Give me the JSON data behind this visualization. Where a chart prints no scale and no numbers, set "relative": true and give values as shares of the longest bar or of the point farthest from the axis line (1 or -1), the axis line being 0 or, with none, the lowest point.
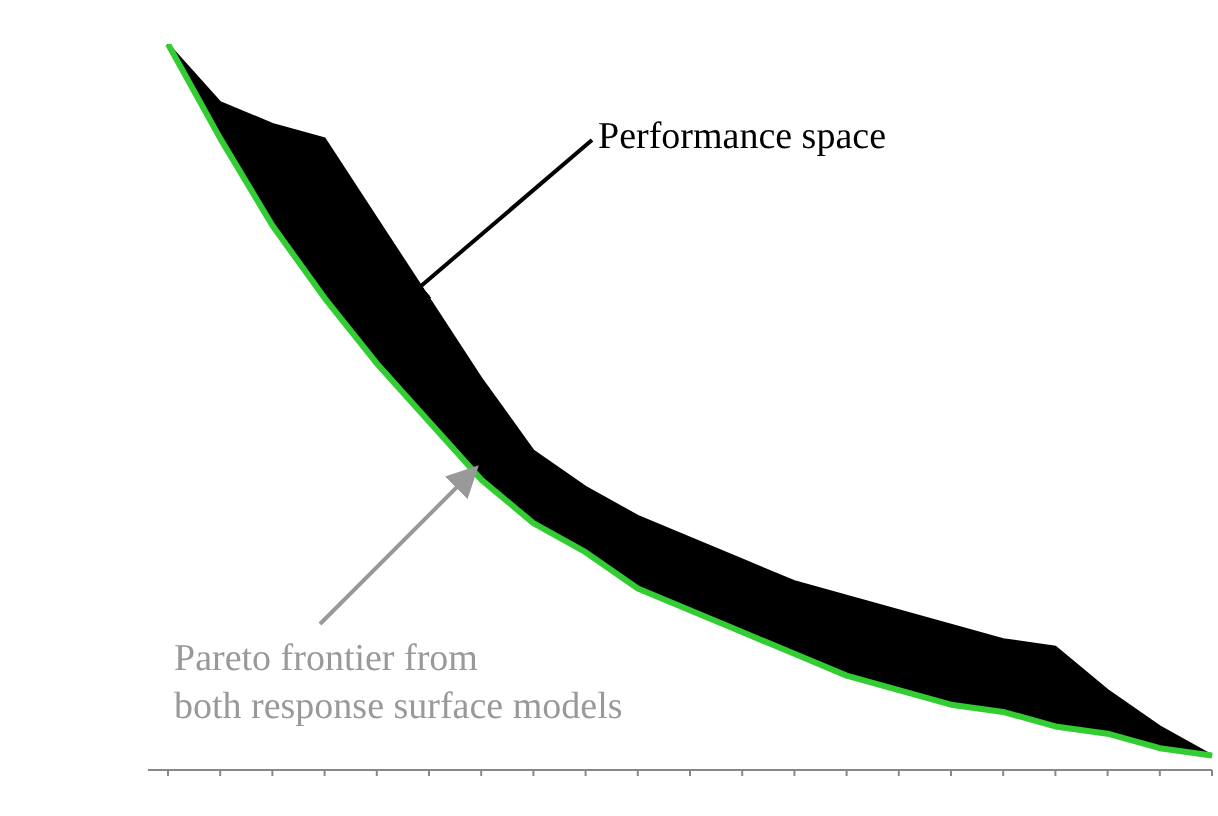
{
  "chart_data": {
    "type": "line",
    "relative": true,
    "categories": [
      null,
      null,
      null,
      null,
      null,
      null,
      null,
      null,
      null,
      null,
      null,
      null,
      null,
      null,
      null,
      null,
      null,
      null,
      null,
      null,
      null
    ],
    "series": [
      {
        "color": "#33cc33",
        "values": [
          1.0,
          0.87,
          0.75,
          0.65,
          0.56,
          0.48,
          0.4,
          0.34,
          0.3,
          0.25,
          0.22,
          0.19,
          0.16,
          0.13,
          0.11,
          0.09,
          0.08,
          0.06,
          0.05,
          0.03,
          0.02
        ],
        "lower": [
          1.0,
          0.87,
          0.75,
          0.65,
          0.56,
          0.48,
          0.4,
          0.34,
          0.3,
          0.25,
          0.22,
          0.19,
          0.16,
          0.13,
          0.11,
          0.09,
          0.08,
          0.06,
          0.05,
          0.03,
          0.02
        ],
        "upper": [
          1.0,
          0.92,
          0.89,
          0.87,
          0.76,
          0.65,
          0.54,
          0.44,
          0.39,
          0.35,
          0.32,
          0.29,
          0.26,
          0.24,
          0.22,
          0.2,
          0.18,
          0.17,
          0.11,
          0.06,
          0.02
        ]
      }
    ],
    "annotations": [
      "Performance space",
      "Pareto frontier from\nboth response surface models"
    ]
  }
}
